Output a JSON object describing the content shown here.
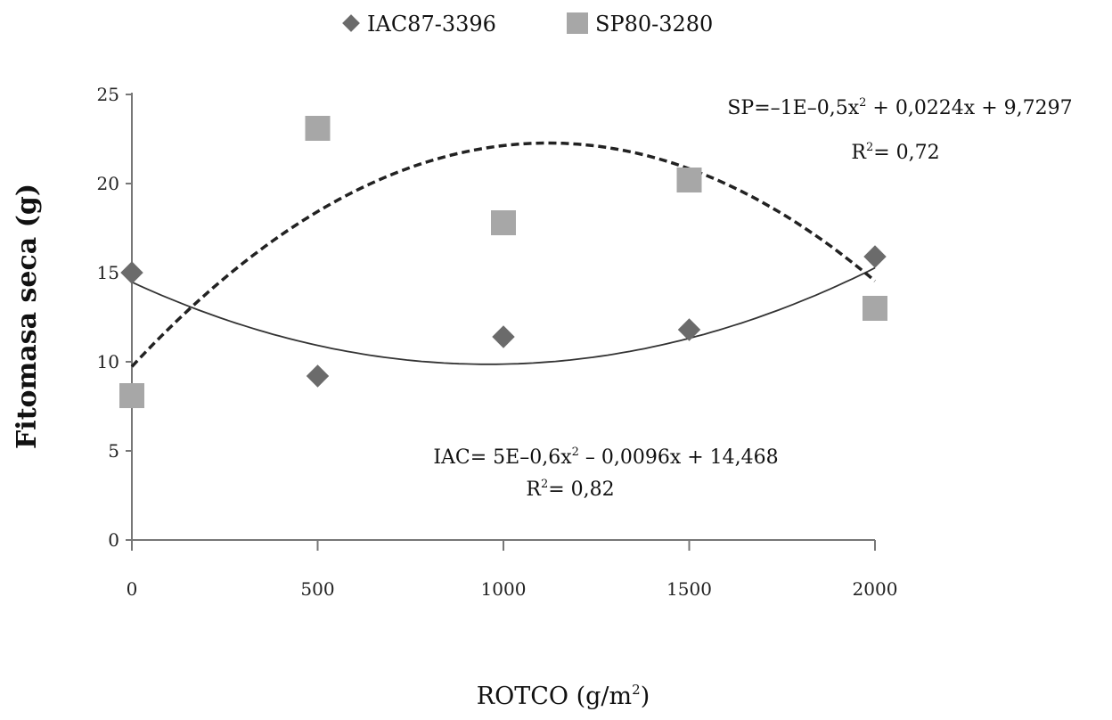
{
  "chart_data": {
    "type": "scatter",
    "xlabel": "ROTCO (g/m",
    "xlabel_sup": "2",
    "xlabel_close": ")",
    "ylabel": "Fitomasa seca (g)",
    "xlim": [
      0,
      2000
    ],
    "ylim": [
      0,
      25
    ],
    "x_ticks": [
      "0",
      "500",
      "1000",
      "1500",
      "2000"
    ],
    "y_ticks": [
      "0",
      "5",
      "10",
      "15",
      "20",
      "25"
    ],
    "grid": false,
    "legend_position": "top",
    "series": [
      {
        "name": "IAC87-3396",
        "marker": "diamond",
        "color": "#6b6b6b",
        "trendline": "solid",
        "x": [
          0,
          500,
          1000,
          1500,
          2000
        ],
        "y": [
          15.0,
          9.2,
          11.4,
          11.8,
          15.9
        ],
        "fit": {
          "a": 5e-06,
          "b": -0.0096,
          "c": 14.468
        },
        "equation": {
          "prefix": "IAC= 5E–0,6x",
          "sup": "2",
          "suffix": " – 0,0096x + 14,468"
        },
        "r2": {
          "prefix": "R",
          "sup": "2",
          "suffix": "= 0,82"
        }
      },
      {
        "name": "SP80-3280",
        "marker": "square",
        "color": "#a7a7a7",
        "trendline": "dashed",
        "x": [
          0,
          500,
          1000,
          1500,
          2000
        ],
        "y": [
          8.1,
          23.1,
          17.8,
          20.2,
          13.0
        ],
        "fit": {
          "a": -1e-05,
          "b": 0.0224,
          "c": 9.7297
        },
        "equation": {
          "prefix": "SP=–1E–0,5x",
          "sup": "2",
          "suffix": " + 0,0224x + 9,7297"
        },
        "r2": {
          "prefix": "R",
          "sup": "2",
          "suffix": "= 0,72"
        }
      }
    ]
  }
}
